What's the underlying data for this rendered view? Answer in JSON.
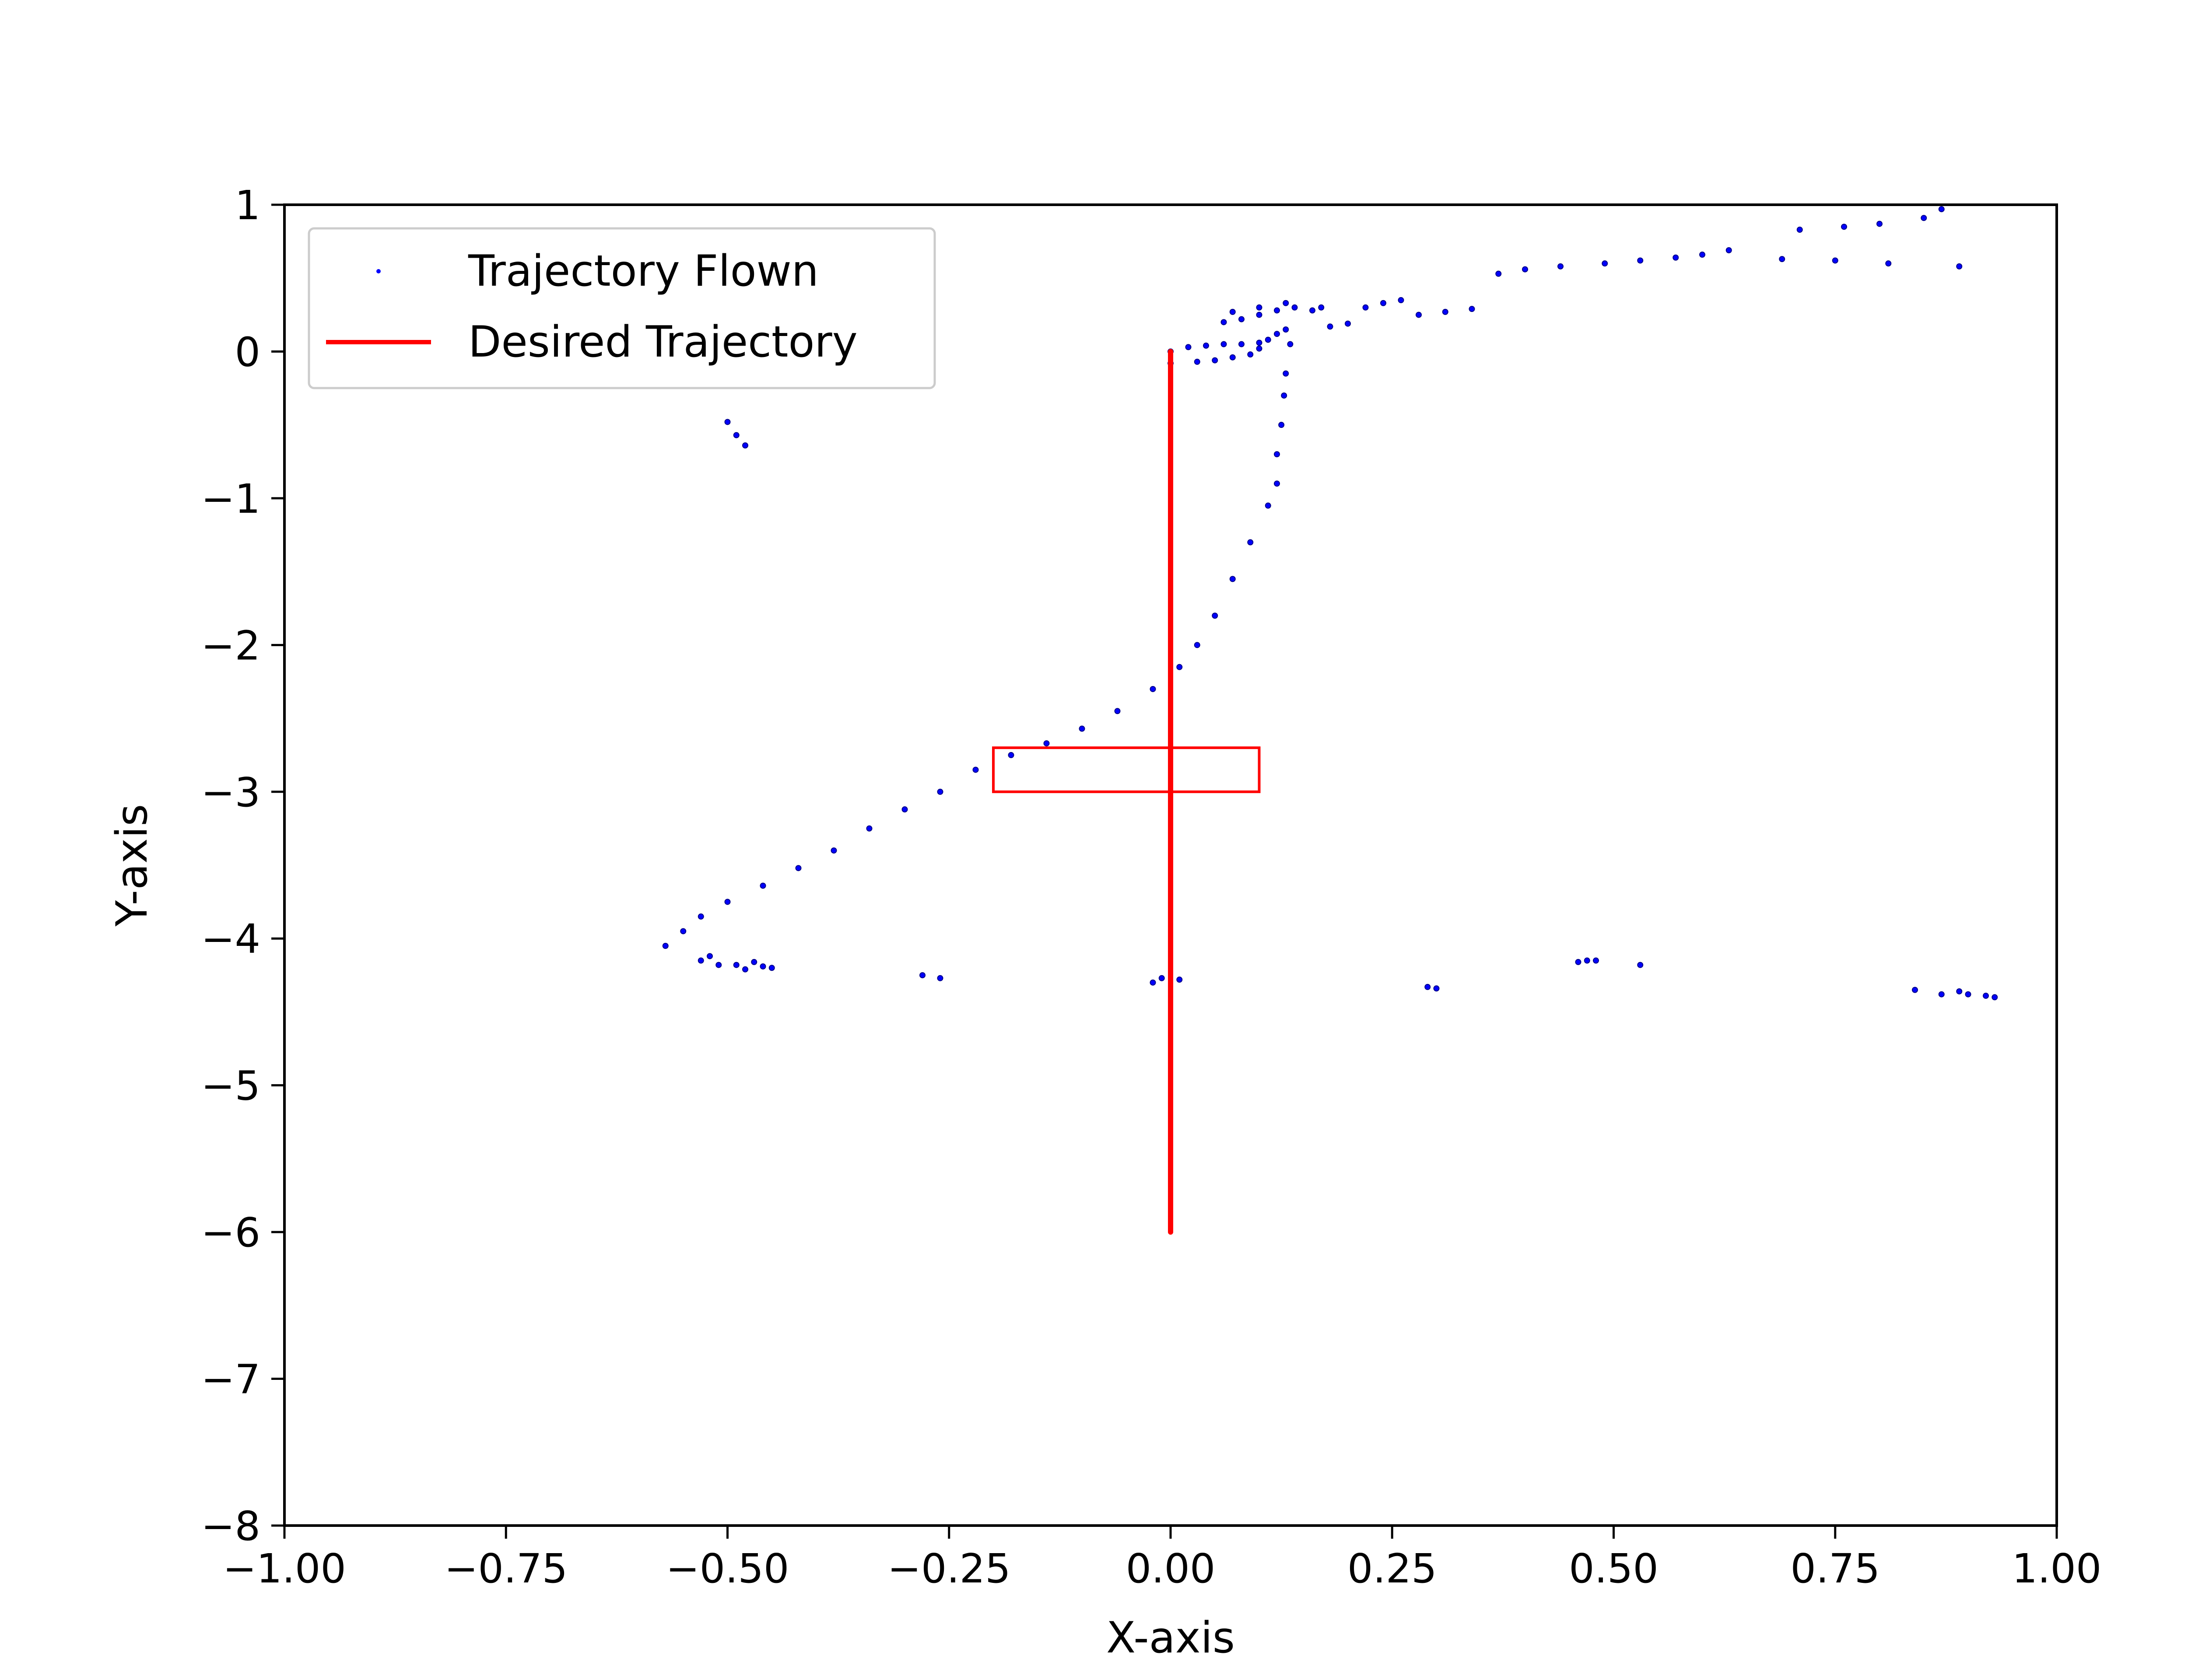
{
  "chart_data": {
    "type": "scatter",
    "title": "",
    "xlabel": "X-axis",
    "ylabel": "Y-axis",
    "xlim": [
      -1.0,
      1.0
    ],
    "ylim": [
      -8,
      1
    ],
    "grid": false,
    "legend_position": "top-left",
    "xticks": [
      "−1.00",
      "−0.75",
      "−0.50",
      "−0.25",
      "0.00",
      "0.25",
      "0.50",
      "0.75",
      "1.00"
    ],
    "xtick_values": [
      -1.0,
      -0.75,
      -0.5,
      -0.25,
      0.0,
      0.25,
      0.5,
      0.75,
      1.0
    ],
    "yticks": [
      "1",
      "0",
      "−1",
      "−2",
      "−3",
      "−4",
      "−5",
      "−6",
      "−7",
      "−8"
    ],
    "ytick_values": [
      1,
      0,
      -1,
      -2,
      -3,
      -4,
      -5,
      -6,
      -7,
      -8
    ],
    "series": [
      {
        "name": "Trajectory Flown",
        "kind": "scatter",
        "color": "#0000ff",
        "points": [
          [
            0.0,
            0.0
          ],
          [
            0.02,
            0.03
          ],
          [
            0.04,
            0.04
          ],
          [
            0.06,
            0.05
          ],
          [
            0.08,
            0.05
          ],
          [
            0.1,
            0.06
          ],
          [
            0.0,
            -0.08
          ],
          [
            0.03,
            -0.07
          ],
          [
            0.05,
            -0.06
          ],
          [
            0.07,
            -0.04
          ],
          [
            0.09,
            -0.02
          ],
          [
            0.1,
            0.02
          ],
          [
            0.11,
            0.08
          ],
          [
            0.12,
            0.12
          ],
          [
            0.06,
            0.2
          ],
          [
            0.08,
            0.22
          ],
          [
            0.1,
            0.25
          ],
          [
            0.12,
            0.28
          ],
          [
            0.14,
            0.3
          ],
          [
            0.16,
            0.28
          ],
          [
            0.17,
            0.3
          ],
          [
            0.13,
            0.33
          ],
          [
            0.1,
            0.3
          ],
          [
            0.07,
            0.27
          ],
          [
            0.13,
            0.15
          ],
          [
            0.135,
            0.05
          ],
          [
            0.13,
            -0.15
          ],
          [
            0.128,
            -0.3
          ],
          [
            0.125,
            -0.5
          ],
          [
            0.12,
            -0.7
          ],
          [
            0.12,
            -0.9
          ],
          [
            0.11,
            -1.05
          ],
          [
            0.09,
            -1.3
          ],
          [
            0.07,
            -1.55
          ],
          [
            0.05,
            -1.8
          ],
          [
            0.03,
            -2.0
          ],
          [
            0.01,
            -2.15
          ],
          [
            -0.02,
            -2.3
          ],
          [
            -0.06,
            -2.45
          ],
          [
            -0.1,
            -2.57
          ],
          [
            -0.14,
            -2.67
          ],
          [
            -0.18,
            -2.75
          ],
          [
            -0.22,
            -2.85
          ],
          [
            -0.26,
            -3.0
          ],
          [
            -0.3,
            -3.12
          ],
          [
            -0.34,
            -3.25
          ],
          [
            -0.38,
            -3.4
          ],
          [
            -0.42,
            -3.52
          ],
          [
            -0.46,
            -3.64
          ],
          [
            -0.5,
            -3.75
          ],
          [
            -0.53,
            -3.85
          ],
          [
            -0.55,
            -3.95
          ],
          [
            -0.57,
            -4.05
          ],
          [
            0.18,
            0.17
          ],
          [
            0.2,
            0.19
          ],
          [
            0.22,
            0.3
          ],
          [
            0.24,
            0.33
          ],
          [
            0.26,
            0.35
          ],
          [
            0.28,
            0.25
          ],
          [
            0.31,
            0.27
          ],
          [
            0.34,
            0.29
          ],
          [
            0.37,
            0.53
          ],
          [
            0.4,
            0.56
          ],
          [
            0.44,
            0.58
          ],
          [
            0.49,
            0.6
          ],
          [
            0.53,
            0.62
          ],
          [
            0.57,
            0.64
          ],
          [
            0.6,
            0.66
          ],
          [
            0.63,
            0.69
          ],
          [
            0.69,
            0.63
          ],
          [
            0.71,
            0.83
          ],
          [
            0.75,
            0.62
          ],
          [
            0.76,
            0.85
          ],
          [
            0.8,
            0.87
          ],
          [
            0.81,
            0.6
          ],
          [
            0.85,
            0.91
          ],
          [
            0.87,
            0.97
          ],
          [
            0.89,
            0.58
          ],
          [
            -0.5,
            -0.48
          ],
          [
            -0.49,
            -0.57
          ],
          [
            -0.48,
            -0.64
          ],
          [
            -0.53,
            -4.15
          ],
          [
            -0.52,
            -4.12
          ],
          [
            -0.51,
            -4.18
          ],
          [
            -0.49,
            -4.18
          ],
          [
            -0.48,
            -4.21
          ],
          [
            -0.47,
            -4.16
          ],
          [
            -0.46,
            -4.19
          ],
          [
            -0.45,
            -4.2
          ],
          [
            -0.28,
            -4.25
          ],
          [
            -0.26,
            -4.27
          ],
          [
            -0.02,
            -4.3
          ],
          [
            -0.01,
            -4.27
          ],
          [
            0.01,
            -4.28
          ],
          [
            0.29,
            -4.33
          ],
          [
            0.3,
            -4.34
          ],
          [
            0.46,
            -4.16
          ],
          [
            0.47,
            -4.15
          ],
          [
            0.48,
            -4.15
          ],
          [
            0.53,
            -4.18
          ],
          [
            0.84,
            -4.35
          ],
          [
            0.87,
            -4.38
          ],
          [
            0.89,
            -4.36
          ],
          [
            0.9,
            -4.38
          ],
          [
            0.92,
            -4.39
          ],
          [
            0.93,
            -4.4
          ]
        ]
      },
      {
        "name": "Desired Trajectory",
        "kind": "line",
        "color": "#ff0000",
        "points": [
          [
            0.0,
            0.0
          ],
          [
            0.0,
            -6.0
          ]
        ]
      }
    ],
    "annotations": [
      {
        "kind": "rectangle",
        "color": "#ff0000",
        "x_range": [
          -0.2,
          0.1
        ],
        "y_range": [
          -3.0,
          -2.7
        ]
      }
    ]
  }
}
